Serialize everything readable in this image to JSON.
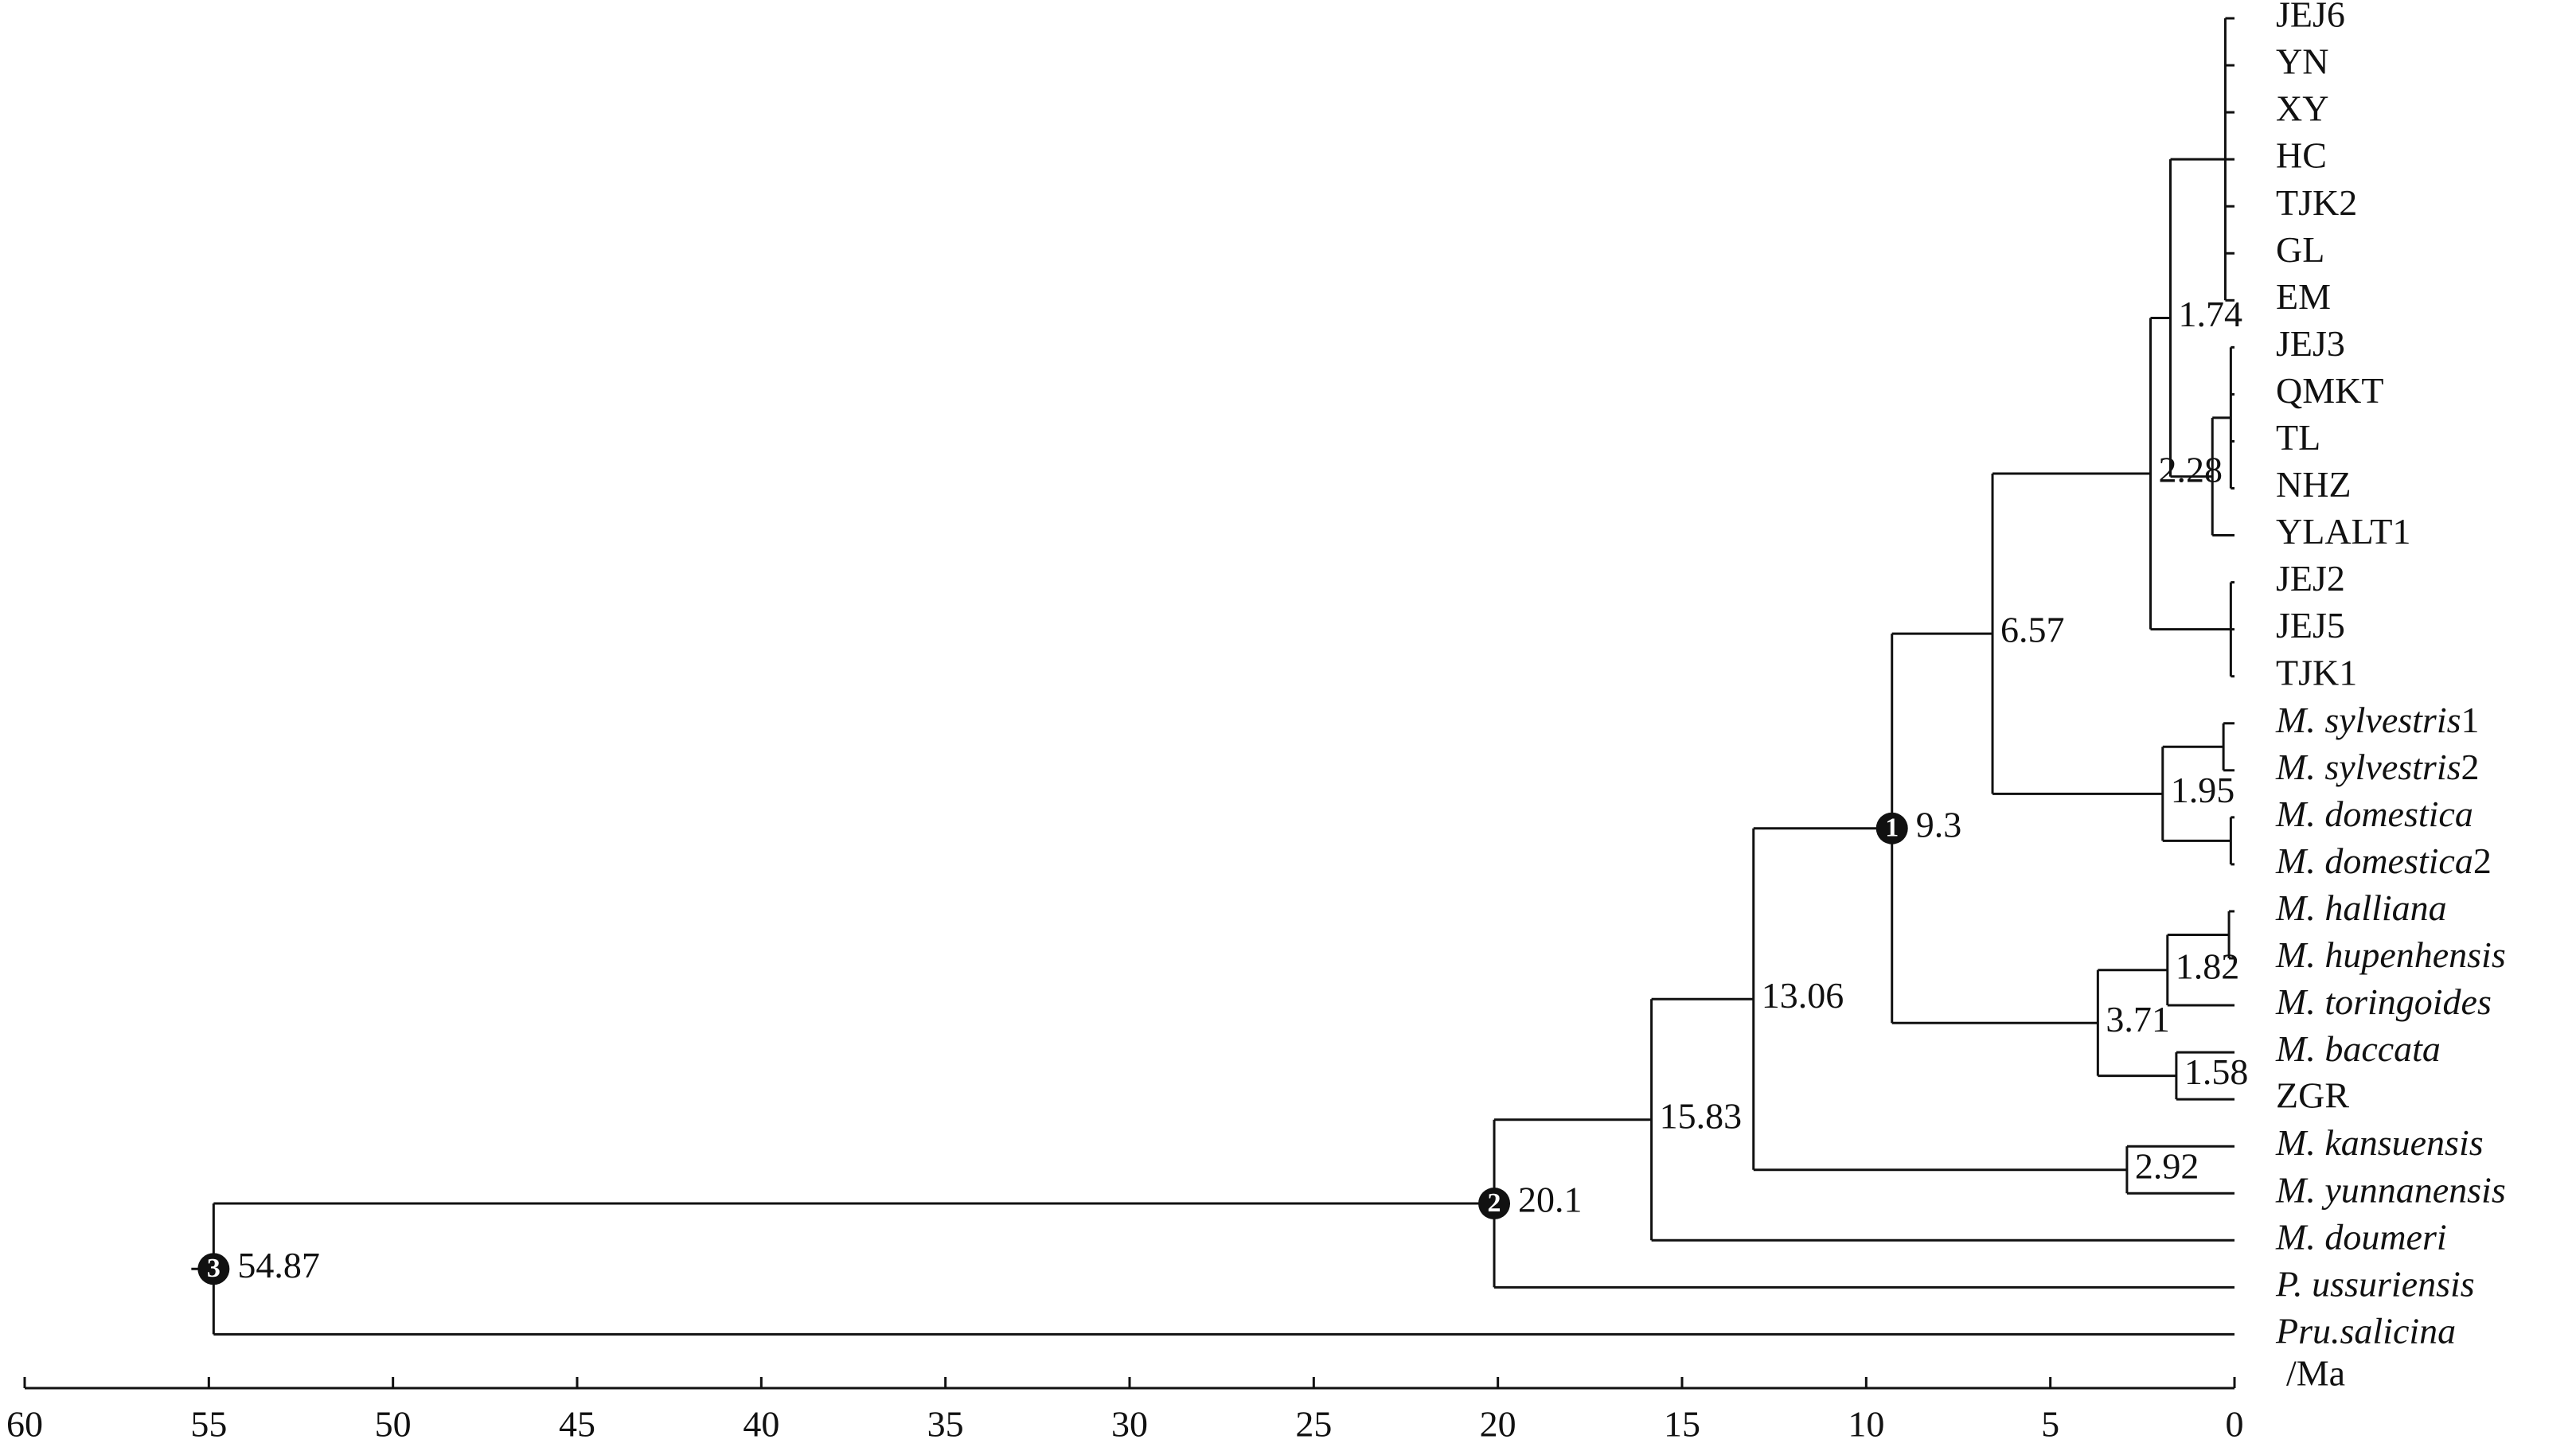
{
  "tree": {
    "age": 54.87,
    "show_age": true,
    "calibration": "3",
    "children": [
      {
        "age": 20.1,
        "show_age": true,
        "calibration": "2",
        "children": [
          {
            "age": 15.83,
            "show_age": true,
            "children": [
              {
                "age": 13.06,
                "show_age": true,
                "children": [
                  {
                    "age": 9.3,
                    "show_age": true,
                    "calibration": "1",
                    "children": [
                      {
                        "age": 6.57,
                        "show_age": true,
                        "children": [
                          {
                            "age": 2.28,
                            "show_age": true,
                            "children": [
                              {
                                "age": 1.74,
                                "show_age": true,
                                "children": [
                                  {
                                    "age": 0.25,
                                    "children": [
                                      {
                                        "name": "JEJ6"
                                      },
                                      {
                                        "name": "YN"
                                      },
                                      {
                                        "name": "XY"
                                      },
                                      {
                                        "name": "HC"
                                      },
                                      {
                                        "name": "TJK2"
                                      },
                                      {
                                        "name": "GL"
                                      },
                                      {
                                        "name": "EM"
                                      }
                                    ]
                                  },
                                  {
                                    "age": 0.6,
                                    "children": [
                                      {
                                        "age": 0.1,
                                        "children": [
                                          {
                                            "name": "JEJ3"
                                          },
                                          {
                                            "name": "QMKT"
                                          },
                                          {
                                            "name": "TL"
                                          },
                                          {
                                            "name": "NHZ"
                                          }
                                        ]
                                      },
                                      {
                                        "name": "YLALT1"
                                      }
                                    ]
                                  }
                                ]
                              },
                              {
                                "age": 0.1,
                                "children": [
                                  {
                                    "name": "JEJ2"
                                  },
                                  {
                                    "name": "JEJ5"
                                  },
                                  {
                                    "name": "TJK1"
                                  }
                                ]
                              }
                            ]
                          },
                          {
                            "age": 1.95,
                            "show_age": true,
                            "children": [
                              {
                                "age": 0.3,
                                "children": [
                                  {
                                    "name": "M. sylvestris1",
                                    "italic": true
                                  },
                                  {
                                    "name": "M. sylvestris2",
                                    "italic": true
                                  }
                                ]
                              },
                              {
                                "age": 0.1,
                                "children": [
                                  {
                                    "name": "M. domestica",
                                    "italic": true
                                  },
                                  {
                                    "name": "M. domestica2",
                                    "italic": true
                                  }
                                ]
                              }
                            ]
                          }
                        ]
                      },
                      {
                        "age": 3.71,
                        "show_age": true,
                        "children": [
                          {
                            "age": 1.82,
                            "show_age": true,
                            "children": [
                              {
                                "age": 0.15,
                                "children": [
                                  {
                                    "name": "M. halliana",
                                    "italic": true
                                  },
                                  {
                                    "name": "M. hupenhensis",
                                    "italic": true
                                  }
                                ]
                              },
                              {
                                "name": "M. toringoides",
                                "italic": true
                              }
                            ]
                          },
                          {
                            "age": 1.58,
                            "show_age": true,
                            "children": [
                              {
                                "name": "M. baccata",
                                "italic": true
                              },
                              {
                                "name": "ZGR"
                              }
                            ]
                          }
                        ]
                      }
                    ]
                  },
                  {
                    "age": 2.92,
                    "show_age": true,
                    "children": [
                      {
                        "name": "M. kansuensis",
                        "italic": true
                      },
                      {
                        "name": "M. yunnanensis",
                        "italic": true
                      }
                    ]
                  }
                ]
              },
              {
                "name": "M. doumeri",
                "italic": true
              }
            ]
          },
          {
            "name": "P. ussuriensis",
            "italic": true
          }
        ]
      },
      {
        "name": "Pru.salicina",
        "italic": true
      }
    ]
  },
  "axis": {
    "label": "/Ma",
    "lim": [
      60,
      0
    ],
    "ticks": [
      60,
      55,
      50,
      45,
      40,
      35,
      30,
      25,
      20,
      15,
      10,
      5,
      0
    ]
  }
}
